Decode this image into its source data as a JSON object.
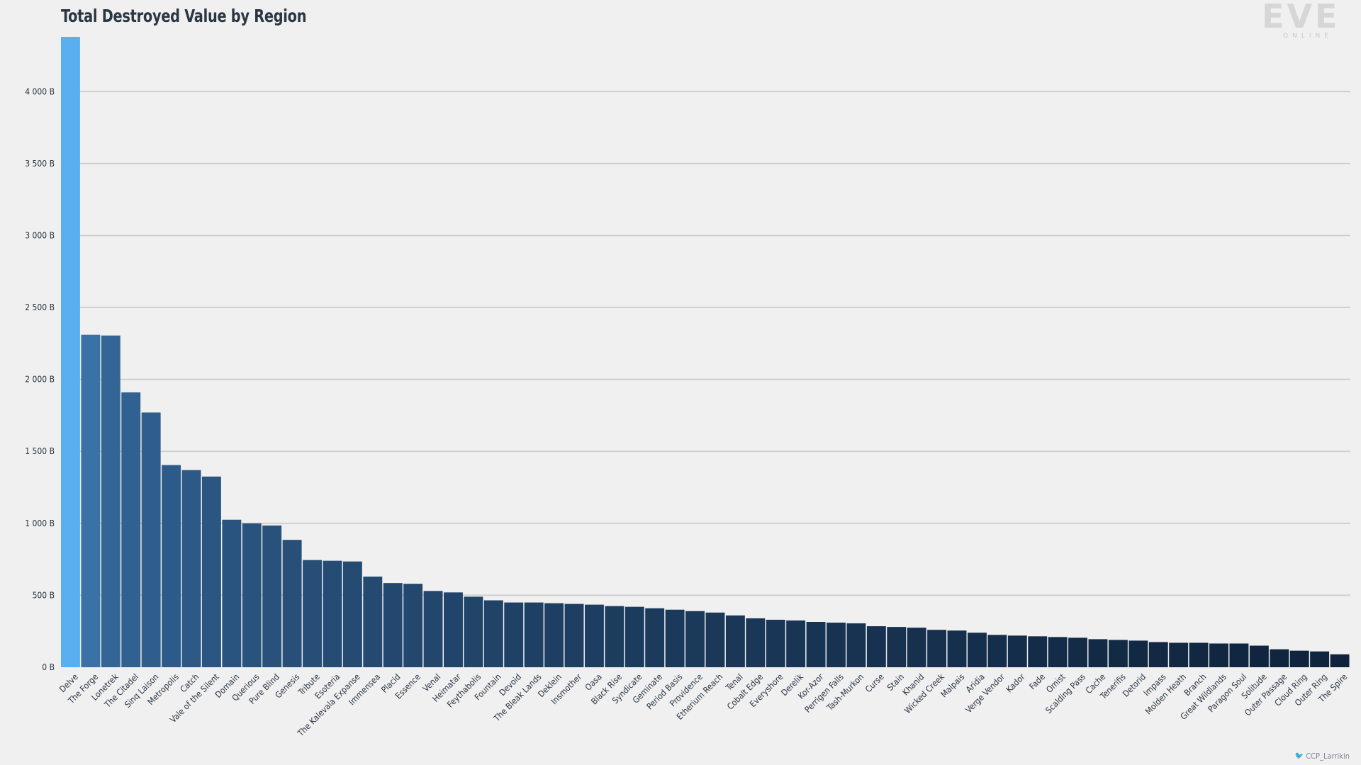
{
  "logo": {
    "word": "EVE",
    "sub": "ONLINE"
  },
  "credit": {
    "handle": "CCP_Larrikin",
    "icon": "twitter-bird-icon"
  },
  "chart_data": {
    "type": "bar",
    "title": "Total Destroyed Value by Region",
    "xlabel": "",
    "ylabel": "",
    "ylim": [
      0,
      4400
    ],
    "yticks": [
      0,
      500,
      1000,
      1500,
      2000,
      2500,
      3000,
      3500,
      4000
    ],
    "ytick_labels": [
      "0 B",
      "500 B",
      "1 000 B",
      "1 500 B",
      "2 000 B",
      "2 500 B",
      "3 000 B",
      "3 500 B",
      "4 000 B"
    ],
    "grid": true,
    "legend": "none",
    "highlight_color": "#5aaff0",
    "color_scale": [
      "#3a72a8",
      "#0f233c"
    ],
    "categories": [
      "Delve",
      "The Forge",
      "Lonetrek",
      "The Citadel",
      "Sinq Laison",
      "Metropolis",
      "Catch",
      "Vale of the Silent",
      "Domain",
      "Querious",
      "Pure Blind",
      "Genesis",
      "Tribute",
      "Esoteria",
      "The Kalevala Expanse",
      "Immensea",
      "Placid",
      "Essence",
      "Venal",
      "Heimatar",
      "Feythabolis",
      "Fountain",
      "Devoid",
      "The Bleak Lands",
      "Deklein",
      "Insmother",
      "Oasa",
      "Black Rise",
      "Syndicate",
      "Geminate",
      "Period Basis",
      "Providence",
      "Etherium Reach",
      "Tenal",
      "Cobalt Edge",
      "Everyshore",
      "Derelik",
      "Kor-Azor",
      "Perrigen Falls",
      "Tash-Murkon",
      "Curse",
      "Stain",
      "Khanid",
      "Wicked Creek",
      "Malpais",
      "Aridia",
      "Verge Vendor",
      "Kador",
      "Fade",
      "Omist",
      "Scalding Pass",
      "Cache",
      "Tenerifis",
      "Detorid",
      "Impass",
      "Molden Heath",
      "Branch",
      "Great Wildlands",
      "Paragon Soul",
      "Solitude",
      "Outer Passage",
      "Cloud Ring",
      "Outer Ring",
      "The Spire"
    ],
    "values": [
      4380,
      2310,
      2305,
      1910,
      1770,
      1405,
      1370,
      1325,
      1025,
      1000,
      985,
      885,
      745,
      740,
      735,
      630,
      585,
      580,
      530,
      520,
      490,
      465,
      450,
      450,
      445,
      440,
      435,
      425,
      420,
      410,
      400,
      390,
      380,
      360,
      340,
      330,
      325,
      315,
      310,
      305,
      285,
      280,
      275,
      260,
      255,
      240,
      225,
      220,
      215,
      210,
      205,
      195,
      190,
      185,
      175,
      170,
      170,
      165,
      165,
      150,
      125,
      115,
      110,
      90
    ]
  }
}
